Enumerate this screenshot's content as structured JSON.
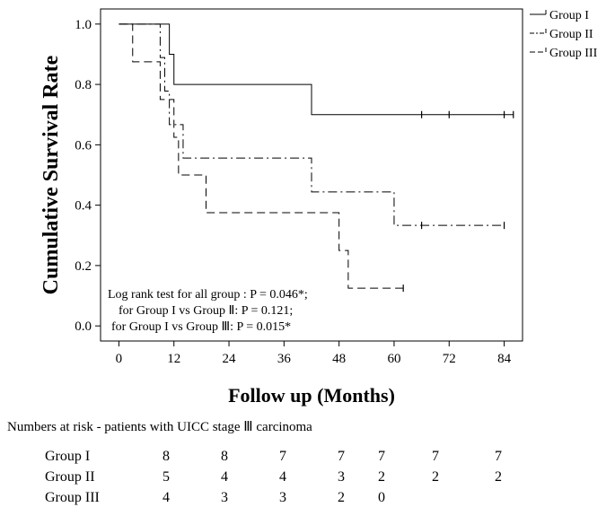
{
  "chart_data": {
    "type": "line",
    "subtype": "kaplan-meier",
    "title": "",
    "xlabel": "Follow up (Months)",
    "ylabel": "Cumulative Survival Rate",
    "xlim": [
      -4,
      88
    ],
    "ylim": [
      -0.05,
      1.05
    ],
    "xticks": [
      0,
      12,
      24,
      36,
      48,
      60,
      72,
      84
    ],
    "yticks": [
      0.0,
      0.2,
      0.4,
      0.6,
      0.8,
      1.0
    ],
    "ytick_labels": [
      "0.0",
      "0.2",
      "0.4",
      "0.6",
      "0.8",
      "1.0"
    ],
    "legend_position": "top-right, outside plot",
    "series": [
      {
        "name": "Group I",
        "style": "solid",
        "steps": [
          [
            0,
            1.0
          ],
          [
            11,
            0.9
          ],
          [
            12,
            0.8
          ],
          [
            42,
            0.7
          ],
          [
            86,
            0.7
          ]
        ],
        "censored": [
          [
            66,
            0.7
          ],
          [
            72,
            0.7
          ],
          [
            84,
            0.7
          ],
          [
            86,
            0.7
          ]
        ]
      },
      {
        "name": "Group II",
        "style": "dashdot",
        "steps": [
          [
            0,
            1.0
          ],
          [
            9,
            0.889
          ],
          [
            10,
            0.778
          ],
          [
            11,
            0.667
          ],
          [
            14,
            0.556
          ],
          [
            42,
            0.444
          ],
          [
            60,
            0.333
          ],
          [
            84,
            0.333
          ]
        ],
        "censored": [
          [
            66,
            0.333
          ],
          [
            84,
            0.333
          ]
        ]
      },
      {
        "name": "Group III",
        "style": "dashed",
        "steps": [
          [
            0,
            1.0
          ],
          [
            3,
            0.875
          ],
          [
            9,
            0.75
          ],
          [
            12,
            0.625
          ],
          [
            13,
            0.5
          ],
          [
            19,
            0.375
          ],
          [
            48,
            0.25
          ],
          [
            50,
            0.125
          ],
          [
            62,
            0.125
          ]
        ],
        "censored": [
          [
            62,
            0.125
          ]
        ]
      }
    ],
    "annotation_lines": [
      "Log rank test for all group : P  = 0.046*;",
      "for Group I vs Group Ⅱ: P = 0.121;",
      "for Group I vs Group Ⅲ: P = 0.015*"
    ]
  },
  "risk_table": {
    "title": "Numbers at risk - patients with UICC stage Ⅲ carcinoma",
    "rows": [
      {
        "label": "Group I",
        "values": [
          "8",
          "8",
          "7",
          "7",
          "7",
          "7",
          "7"
        ]
      },
      {
        "label": "Group II",
        "values": [
          "5",
          "4",
          "4",
          "3",
          "2",
          "2",
          "2"
        ]
      },
      {
        "label": "Group III",
        "values": [
          "4",
          "3",
          "3",
          "2",
          "0"
        ]
      }
    ]
  }
}
